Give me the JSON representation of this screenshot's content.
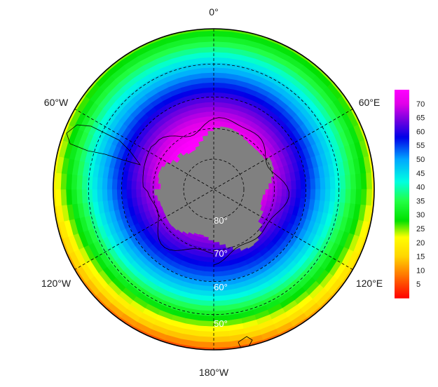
{
  "map": {
    "projection": "south-polar-stereographic",
    "pole_marker": "+",
    "longitude_labels": {
      "top": "0°",
      "bottom": "180°W",
      "upper_left": "60°W",
      "upper_right": "60°E",
      "lower_left": "120°W",
      "lower_right": "120°E"
    },
    "latitude_labels": [
      "80°",
      "70°",
      "60°",
      "50°"
    ],
    "latitude_circles": [
      -80,
      -70,
      -60,
      -50
    ],
    "field_outer_latitude": -40,
    "land_color": "#808080",
    "coastline_color": "#000000",
    "graticule_style": "dashed"
  },
  "colorbar": {
    "min": 0,
    "max": 75,
    "tick_labels": [
      "5",
      "10",
      "15",
      "20",
      "25",
      "30",
      "35",
      "40",
      "45",
      "50",
      "55",
      "60",
      "65",
      "70"
    ],
    "tick_values": [
      5,
      10,
      15,
      20,
      25,
      30,
      35,
      40,
      45,
      50,
      55,
      60,
      65,
      70
    ],
    "color_stops": [
      {
        "value": 0,
        "color": "#ff0000"
      },
      {
        "value": 15,
        "color": "#ffd400"
      },
      {
        "value": 22,
        "color": "#ffff00"
      },
      {
        "value": 28,
        "color": "#00e000"
      },
      {
        "value": 35,
        "color": "#22ff44"
      },
      {
        "value": 42,
        "color": "#00ffe0"
      },
      {
        "value": 50,
        "color": "#00a8ff"
      },
      {
        "value": 58,
        "color": "#0000e8"
      },
      {
        "value": 64,
        "color": "#7000e0"
      },
      {
        "value": 70,
        "color": "#e000e8"
      },
      {
        "value": 75,
        "color": "#ff00ff"
      }
    ]
  }
}
